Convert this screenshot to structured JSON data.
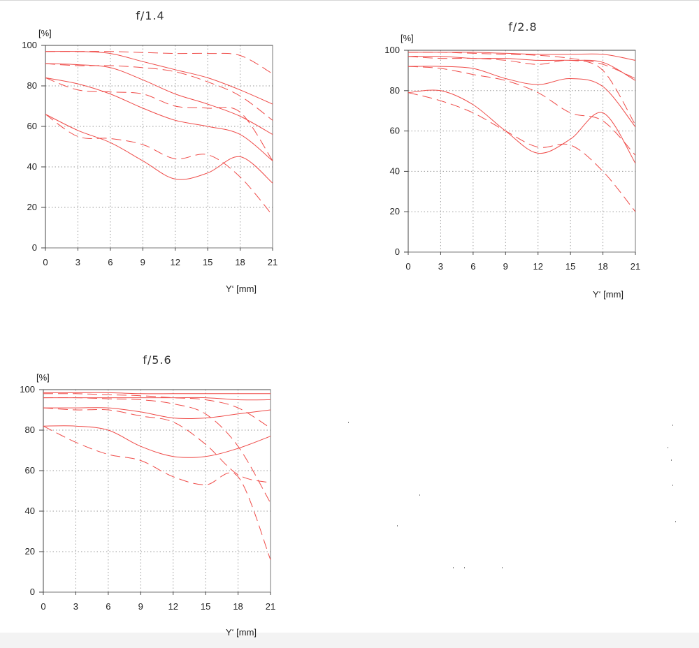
{
  "chart_data": [
    {
      "type": "line",
      "title": "f/1.4",
      "ylabel": "[%]",
      "xlabel": "Y‘ [mm]",
      "xlim": [
        0,
        21
      ],
      "ylim": [
        0,
        100
      ],
      "xticks": [
        0,
        3,
        6,
        9,
        12,
        15,
        18,
        21
      ],
      "yticks": [
        0,
        20,
        40,
        60,
        80,
        100
      ],
      "grid": true,
      "series": [
        {
          "style": "solid",
          "x": [
            0,
            3,
            6,
            9,
            12,
            15,
            18,
            21
          ],
          "y": [
            97,
            97,
            96,
            92,
            88,
            84,
            78,
            71
          ]
        },
        {
          "style": "dashed",
          "x": [
            0,
            3,
            6,
            9,
            12,
            15,
            18,
            21
          ],
          "y": [
            97,
            97,
            97,
            96.5,
            96,
            96,
            95,
            86
          ]
        },
        {
          "style": "solid",
          "x": [
            0,
            3,
            6,
            9,
            12,
            15,
            18,
            21
          ],
          "y": [
            91,
            90.5,
            89,
            83,
            76,
            71,
            65,
            56
          ]
        },
        {
          "style": "dashed",
          "x": [
            0,
            3,
            6,
            9,
            12,
            15,
            18,
            21
          ],
          "y": [
            91,
            90,
            90,
            89,
            87,
            82,
            75,
            63
          ]
        },
        {
          "style": "solid",
          "x": [
            0,
            3,
            6,
            9,
            12,
            15,
            18,
            21
          ],
          "y": [
            84,
            81,
            76,
            69,
            63,
            60,
            56,
            43
          ]
        },
        {
          "style": "dashed",
          "x": [
            0,
            3,
            6,
            9,
            12,
            15,
            18,
            21
          ],
          "y": [
            84,
            78,
            77,
            76,
            70,
            69,
            67,
            43
          ]
        },
        {
          "style": "solid",
          "x": [
            0,
            3,
            6,
            9,
            12,
            15,
            18,
            21
          ],
          "y": [
            66,
            58,
            52,
            43,
            34,
            37,
            45,
            32
          ]
        },
        {
          "style": "dashed",
          "x": [
            0,
            3,
            6,
            9,
            12,
            15,
            18,
            21
          ],
          "y": [
            66,
            55,
            54,
            51,
            44,
            46,
            35,
            16
          ]
        }
      ]
    },
    {
      "type": "line",
      "title": "f/2.8",
      "ylabel": "[%]",
      "xlabel": "Y‘ [mm]",
      "xlim": [
        0,
        21
      ],
      "ylim": [
        0,
        100
      ],
      "xticks": [
        0,
        3,
        6,
        9,
        12,
        15,
        18,
        21
      ],
      "yticks": [
        0,
        20,
        40,
        60,
        80,
        100
      ],
      "grid": true,
      "series": [
        {
          "style": "solid",
          "x": [
            0,
            3,
            6,
            9,
            12,
            15,
            18,
            21
          ],
          "y": [
            99,
            99,
            99,
            98.5,
            98,
            98,
            98,
            95
          ]
        },
        {
          "style": "dashed",
          "x": [
            0,
            3,
            6,
            9,
            12,
            15,
            18,
            21
          ],
          "y": [
            99,
            99,
            98.5,
            98,
            97.5,
            96,
            93,
            86
          ]
        },
        {
          "style": "solid",
          "x": [
            0,
            3,
            6,
            9,
            12,
            15,
            18,
            21
          ],
          "y": [
            97,
            97,
            96,
            96,
            95,
            95,
            94,
            85
          ]
        },
        {
          "style": "dashed",
          "x": [
            0,
            3,
            6,
            9,
            12,
            15,
            18,
            21
          ],
          "y": [
            97,
            96,
            96,
            95,
            93,
            95,
            90,
            63
          ]
        },
        {
          "style": "solid",
          "x": [
            0,
            3,
            6,
            9,
            12,
            15,
            18,
            21
          ],
          "y": [
            92,
            92,
            91,
            86,
            83,
            86,
            82,
            62
          ]
        },
        {
          "style": "dashed",
          "x": [
            0,
            3,
            6,
            9,
            12,
            15,
            18,
            21
          ],
          "y": [
            92,
            91,
            88,
            85,
            79,
            69,
            65,
            48
          ]
        },
        {
          "style": "solid",
          "x": [
            0,
            3,
            6,
            9,
            12,
            15,
            18,
            21
          ],
          "y": [
            79,
            80,
            73,
            60,
            49,
            56,
            69,
            44
          ]
        },
        {
          "style": "dashed",
          "x": [
            0,
            3,
            6,
            9,
            12,
            15,
            18,
            21
          ],
          "y": [
            79,
            75,
            69,
            60,
            52,
            53,
            40,
            20
          ]
        }
      ]
    },
    {
      "type": "line",
      "title": "f/5.6",
      "ylabel": "[%]",
      "xlabel": "Y‘ [mm]",
      "xlim": [
        0,
        21
      ],
      "ylim": [
        0,
        100
      ],
      "xticks": [
        0,
        3,
        6,
        9,
        12,
        15,
        18,
        21
      ],
      "yticks": [
        0,
        20,
        40,
        60,
        80,
        100
      ],
      "grid": true,
      "series": [
        {
          "style": "solid",
          "x": [
            0,
            3,
            6,
            9,
            12,
            15,
            18,
            21
          ],
          "y": [
            98.5,
            98.5,
            98.5,
            98,
            98,
            98,
            98,
            98
          ]
        },
        {
          "style": "dashed",
          "x": [
            0,
            3,
            6,
            9,
            12,
            15,
            18,
            21
          ],
          "y": [
            98,
            98,
            97.5,
            97,
            96,
            95,
            91,
            81
          ]
        },
        {
          "style": "solid",
          "x": [
            0,
            3,
            6,
            9,
            12,
            15,
            18,
            21
          ],
          "y": [
            96,
            96,
            96,
            96,
            96,
            96,
            95,
            95
          ]
        },
        {
          "style": "dashed",
          "x": [
            0,
            3,
            6,
            9,
            12,
            15,
            18,
            21
          ],
          "y": [
            96,
            96,
            95.5,
            95,
            93,
            88,
            72,
            44
          ]
        },
        {
          "style": "solid",
          "x": [
            0,
            3,
            6,
            9,
            12,
            15,
            18,
            21
          ],
          "y": [
            91,
            91,
            91,
            89,
            86,
            86,
            88,
            90
          ]
        },
        {
          "style": "dashed",
          "x": [
            0,
            3,
            6,
            9,
            12,
            15,
            18,
            21
          ],
          "y": [
            91,
            90,
            90,
            87,
            84,
            73,
            58,
            54
          ]
        },
        {
          "style": "solid",
          "x": [
            0,
            3,
            6,
            9,
            12,
            15,
            18,
            21
          ],
          "y": [
            82,
            82,
            80,
            72,
            67,
            67,
            71,
            77
          ]
        },
        {
          "style": "dashed",
          "x": [
            0,
            3,
            6,
            9,
            12,
            15,
            18,
            21
          ],
          "y": [
            82,
            74,
            68,
            65,
            57,
            53,
            57,
            16
          ]
        }
      ]
    }
  ]
}
